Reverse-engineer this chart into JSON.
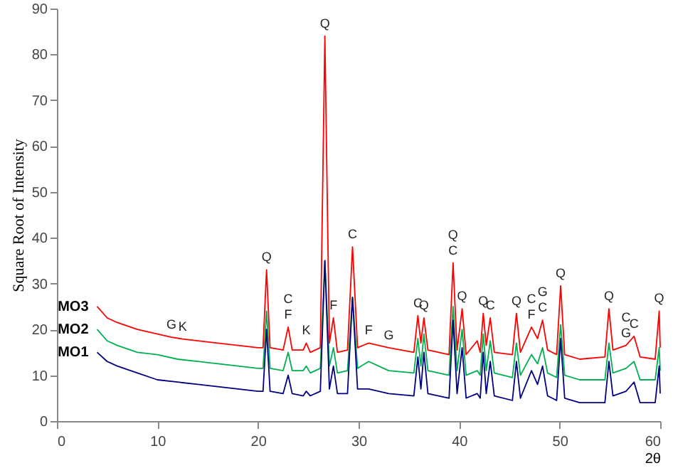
{
  "chart_data": {
    "type": "line",
    "xlabel": "2θ",
    "ylabel": "Square Root of Intensity",
    "xlim": [
      0,
      60
    ],
    "ylim": [
      0,
      90
    ],
    "xticks": [
      0,
      10,
      20,
      30,
      40,
      50,
      60
    ],
    "yticks": [
      0,
      10,
      20,
      30,
      40,
      50,
      60,
      70,
      80,
      90
    ],
    "series": [
      {
        "name": "MO3",
        "color": "#ff0000",
        "x": [
          4,
          5,
          6,
          8,
          10,
          11.4,
          12.5,
          14,
          16,
          18,
          20,
          20.5,
          20.85,
          21.2,
          22.5,
          23,
          23.4,
          24.5,
          24.8,
          25.2,
          26.2,
          26.65,
          27.1,
          27.5,
          27.9,
          28.9,
          29.4,
          29.9,
          31,
          33,
          35.5,
          35.9,
          36.2,
          36.5,
          36.9,
          39,
          39.4,
          39.8,
          40.3,
          40.7,
          41.8,
          42.1,
          42.4,
          42.7,
          43.1,
          43.5,
          45.3,
          45.7,
          46.1,
          47.2,
          47.8,
          48.3,
          48.8,
          49.7,
          50.1,
          50.5,
          52,
          54.5,
          54.9,
          55.3,
          56.6,
          57.4,
          58,
          59.5,
          59.9,
          60
        ],
        "values": [
          25,
          22.5,
          21.5,
          20,
          19,
          18.3,
          17.9,
          17.5,
          17,
          16.5,
          16,
          16,
          33,
          16,
          15.5,
          20.5,
          15.5,
          15.5,
          17,
          15,
          16,
          84,
          17,
          22.5,
          15,
          15.5,
          38,
          16,
          17,
          16,
          15,
          23,
          17,
          22.5,
          15.5,
          14.5,
          34.5,
          15.5,
          24.5,
          14.5,
          17.5,
          15,
          23.5,
          16.5,
          22.5,
          15,
          14.5,
          23.5,
          15,
          20.5,
          18,
          22,
          15.5,
          14.5,
          29.5,
          14.5,
          13.5,
          14,
          24.5,
          15.5,
          16.5,
          18.5,
          14,
          13.5,
          24,
          16
        ]
      },
      {
        "name": "MO2",
        "color": "#00b050",
        "x": [
          4,
          5,
          6,
          8,
          10,
          12,
          14,
          16,
          18,
          20,
          20.5,
          20.85,
          21.2,
          22.5,
          23,
          23.4,
          24.5,
          24.8,
          25.2,
          26.2,
          26.65,
          27.1,
          27.5,
          27.9,
          28.9,
          29.4,
          29.9,
          31,
          33,
          35.5,
          35.9,
          36.2,
          36.5,
          36.9,
          39,
          39.4,
          39.8,
          40.3,
          40.7,
          41.8,
          42.1,
          42.4,
          42.7,
          43.1,
          43.5,
          45.3,
          45.7,
          46.1,
          47.2,
          47.8,
          48.3,
          48.8,
          49.7,
          50.1,
          50.5,
          52,
          54.5,
          54.9,
          55.3,
          56.6,
          57.4,
          58,
          59.5,
          59.9,
          60
        ],
        "values": [
          20,
          17.5,
          16.5,
          15,
          14.5,
          13.5,
          13,
          12.5,
          12,
          11.5,
          11.5,
          24,
          11.5,
          11,
          15,
          11,
          11,
          12,
          10.5,
          11.5,
          35,
          12,
          16,
          10.5,
          11,
          27,
          11.5,
          13,
          11,
          10.5,
          18,
          12,
          19,
          11,
          10,
          25,
          11,
          20,
          10,
          11,
          10,
          19,
          11,
          17.5,
          10.5,
          9.5,
          17,
          10,
          14.5,
          12.5,
          16,
          10.5,
          9.5,
          21,
          10,
          9,
          9,
          17,
          10.5,
          11.5,
          13,
          9,
          9,
          16,
          11
        ]
      },
      {
        "name": "MO1",
        "color": "#000080",
        "x": [
          4,
          5,
          6,
          8,
          10,
          12,
          14,
          16,
          18,
          20,
          20.5,
          20.85,
          21.2,
          22.5,
          23,
          23.4,
          24.5,
          24.8,
          25.2,
          26.2,
          26.65,
          27.1,
          27.5,
          27.9,
          28.9,
          29.4,
          29.9,
          31,
          33,
          35.5,
          35.9,
          36.2,
          36.5,
          36.9,
          39,
          39.4,
          39.8,
          40.3,
          40.7,
          41.8,
          42.1,
          42.4,
          42.7,
          43.1,
          43.5,
          45.3,
          45.7,
          46.1,
          47.2,
          47.8,
          48.3,
          48.8,
          49.7,
          50.1,
          50.5,
          52,
          54.5,
          54.9,
          55.3,
          56.6,
          57.4,
          58,
          59.5,
          59.9,
          60
        ],
        "values": [
          15,
          13,
          12,
          10.5,
          9,
          8.5,
          8,
          7.5,
          7,
          6.5,
          6.5,
          20,
          6.5,
          6,
          10,
          6,
          5.5,
          6.5,
          5.5,
          6.5,
          35,
          7,
          12,
          6,
          6,
          27,
          7,
          7,
          6,
          5.5,
          14,
          7,
          15,
          6,
          5,
          22,
          6,
          16,
          5,
          6,
          5,
          15,
          6,
          13,
          5.5,
          4.5,
          13,
          5,
          11,
          8,
          12,
          5.5,
          4.5,
          18,
          5,
          4,
          4,
          13,
          5.5,
          6.5,
          8.5,
          4,
          4,
          12,
          6
        ]
      }
    ],
    "annotations": [
      {
        "text": "G",
        "x": 11.4,
        "y": 18.3
      },
      {
        "text": "K",
        "x": 12.5,
        "y": 17.9
      },
      {
        "text": "Q",
        "x": 20.85,
        "y": 33
      },
      {
        "text": "C",
        "x": 23,
        "y": 20.5
      },
      {
        "text": "F",
        "x": 23,
        "y": 20.5
      },
      {
        "text": "K",
        "x": 24.8,
        "y": 17
      },
      {
        "text": "Q",
        "x": 26.65,
        "y": 84
      },
      {
        "text": "F",
        "x": 27.5,
        "y": 22.5
      },
      {
        "text": "C",
        "x": 29.4,
        "y": 38
      },
      {
        "text": "F",
        "x": 31,
        "y": 17
      },
      {
        "text": "G",
        "x": 33,
        "y": 16
      },
      {
        "text": "C",
        "x": 35.9,
        "y": 23
      },
      {
        "text": "Q",
        "x": 36.5,
        "y": 22.5
      },
      {
        "text": "Q",
        "x": 39.4,
        "y": 34.5
      },
      {
        "text": "C",
        "x": 39.4,
        "y": 34.5
      },
      {
        "text": "Q",
        "x": 40.3,
        "y": 24.5
      },
      {
        "text": "Q",
        "x": 42.4,
        "y": 23.5
      },
      {
        "text": "C",
        "x": 43.1,
        "y": 22.5
      },
      {
        "text": "Q",
        "x": 45.7,
        "y": 23.5
      },
      {
        "text": "C",
        "x": 47.2,
        "y": 20.5
      },
      {
        "text": "F",
        "x": 47.2,
        "y": 20.5
      },
      {
        "text": "G",
        "x": 48.3,
        "y": 22
      },
      {
        "text": "C",
        "x": 48.3,
        "y": 22
      },
      {
        "text": "Q",
        "x": 50.1,
        "y": 29.5
      },
      {
        "text": "Q",
        "x": 54.9,
        "y": 24.5
      },
      {
        "text": "C",
        "x": 56.6,
        "y": 16.5
      },
      {
        "text": "G",
        "x": 56.6,
        "y": 16.5
      },
      {
        "text": "C",
        "x": 57.4,
        "y": 18.5
      },
      {
        "text": "Q",
        "x": 59.9,
        "y": 24
      }
    ]
  }
}
